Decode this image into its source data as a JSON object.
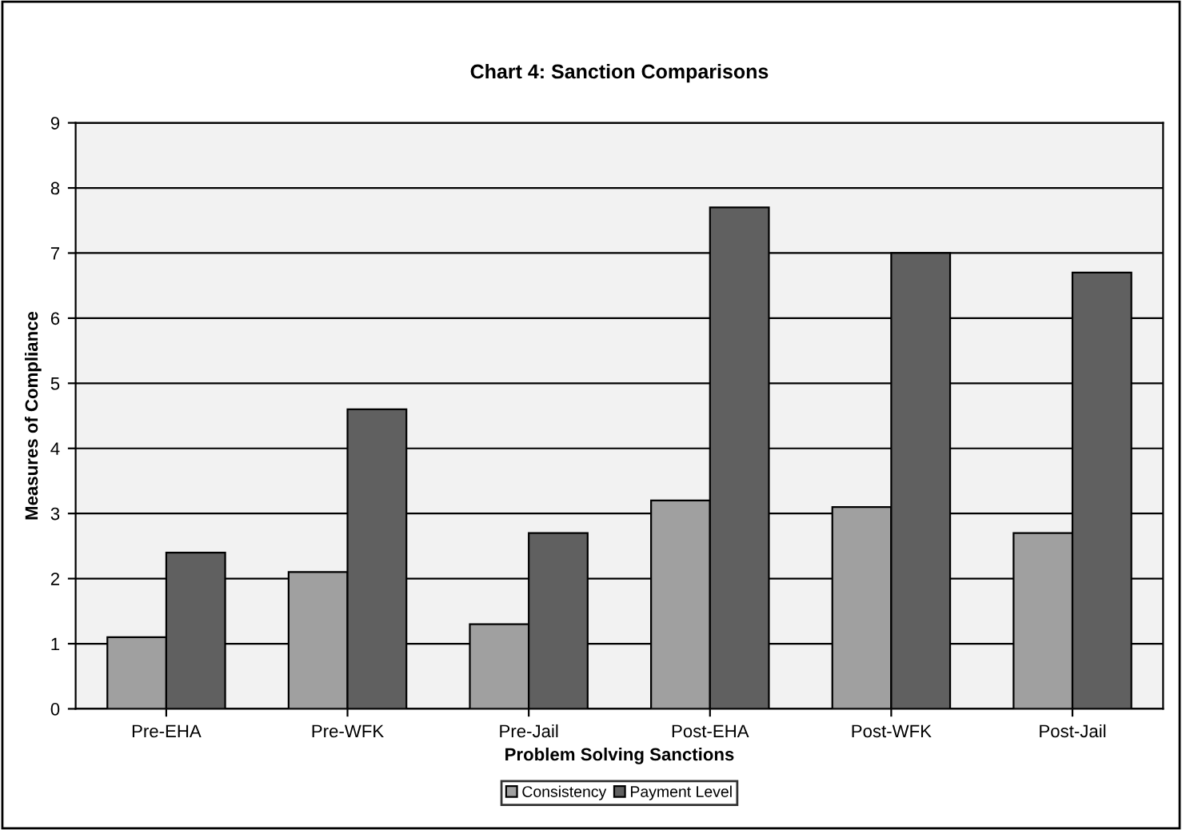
{
  "chart_data": {
    "type": "bar",
    "title": "Chart 4: Sanction Comparisons",
    "xlabel": "Problem Solving Sanctions",
    "ylabel": "Measures of Compliance",
    "categories": [
      "Pre-EHA",
      "Pre-WFK",
      "Pre-Jail",
      "Post-EHA",
      "Post-WFK",
      "Post-Jail"
    ],
    "series": [
      {
        "name": "Consistency",
        "color": "#a0a0a0",
        "values": [
          1.1,
          2.1,
          1.3,
          3.2,
          3.1,
          2.7
        ]
      },
      {
        "name": "Payment Level",
        "color": "#606060",
        "values": [
          2.4,
          4.6,
          2.7,
          7.7,
          7.0,
          6.7
        ]
      }
    ],
    "ylim": [
      0,
      9
    ],
    "yticks": [
      0,
      1,
      2,
      3,
      4,
      5,
      6,
      7,
      8,
      9
    ],
    "grid": "y",
    "legend": "bottom"
  }
}
